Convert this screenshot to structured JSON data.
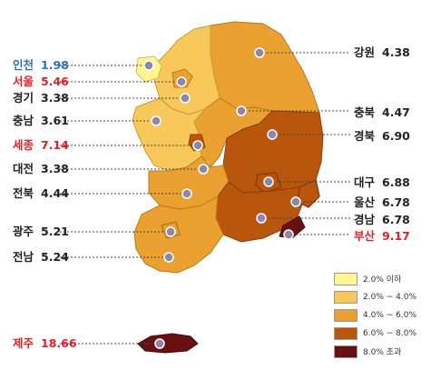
{
  "legend": {
    "items": [
      {
        "label": "2.0% 이하",
        "color": "#fff68f"
      },
      {
        "label": "2.0% ~ 4.0%",
        "color": "#f8c95a"
      },
      {
        "label": "4.0% ~ 6.0%",
        "color": "#eba032"
      },
      {
        "label": "6.0% ~ 8.0%",
        "color": "#b8560e"
      },
      {
        "label": "8.0% 초과",
        "color": "#6a0f0f"
      }
    ]
  },
  "regions": [
    {
      "id": "incheon",
      "name": "인천",
      "value": "1.98",
      "name_color": "#2f6fb4",
      "value_color": "#2f6fb4"
    },
    {
      "id": "seoul",
      "name": "서울",
      "value": "5.46",
      "name_color": "#e0202a",
      "value_color": "#e0202a"
    },
    {
      "id": "gyeonggi",
      "name": "경기",
      "value": "3.38",
      "name_color": "#222222",
      "value_color": "#222222"
    },
    {
      "id": "chungnam",
      "name": "충남",
      "value": "3.61",
      "name_color": "#222222",
      "value_color": "#222222"
    },
    {
      "id": "sejong",
      "name": "세종",
      "value": "7.14",
      "name_color": "#e0202a",
      "value_color": "#e0202a"
    },
    {
      "id": "daejeon",
      "name": "대전",
      "value": "3.38",
      "name_color": "#222222",
      "value_color": "#222222"
    },
    {
      "id": "jeonbuk",
      "name": "전북",
      "value": "4.44",
      "name_color": "#222222",
      "value_color": "#222222"
    },
    {
      "id": "gwangju",
      "name": "광주",
      "value": "5.21",
      "name_color": "#222222",
      "value_color": "#222222"
    },
    {
      "id": "jeonnam",
      "name": "전남",
      "value": "5.24",
      "name_color": "#222222",
      "value_color": "#222222"
    },
    {
      "id": "jeju",
      "name": "제주",
      "value": "18.66",
      "name_color": "#e0202a",
      "value_color": "#e0202a"
    },
    {
      "id": "gangwon",
      "name": "강원",
      "value": "4.38",
      "name_color": "#222222",
      "value_color": "#222222"
    },
    {
      "id": "chungbuk",
      "name": "충북",
      "value": "4.47",
      "name_color": "#222222",
      "value_color": "#222222"
    },
    {
      "id": "gyeongbuk",
      "name": "경북",
      "value": "6.90",
      "name_color": "#222222",
      "value_color": "#222222"
    },
    {
      "id": "daegu",
      "name": "대구",
      "value": "6.88",
      "name_color": "#222222",
      "value_color": "#222222"
    },
    {
      "id": "ulsan",
      "name": "울산",
      "value": "6.78",
      "name_color": "#222222",
      "value_color": "#222222"
    },
    {
      "id": "gyeongnam",
      "name": "경남",
      "value": "6.78",
      "name_color": "#222222",
      "value_color": "#222222"
    },
    {
      "id": "busan",
      "name": "부산",
      "value": "9.17",
      "name_color": "#e0202a",
      "value_color": "#e0202a"
    }
  ]
}
